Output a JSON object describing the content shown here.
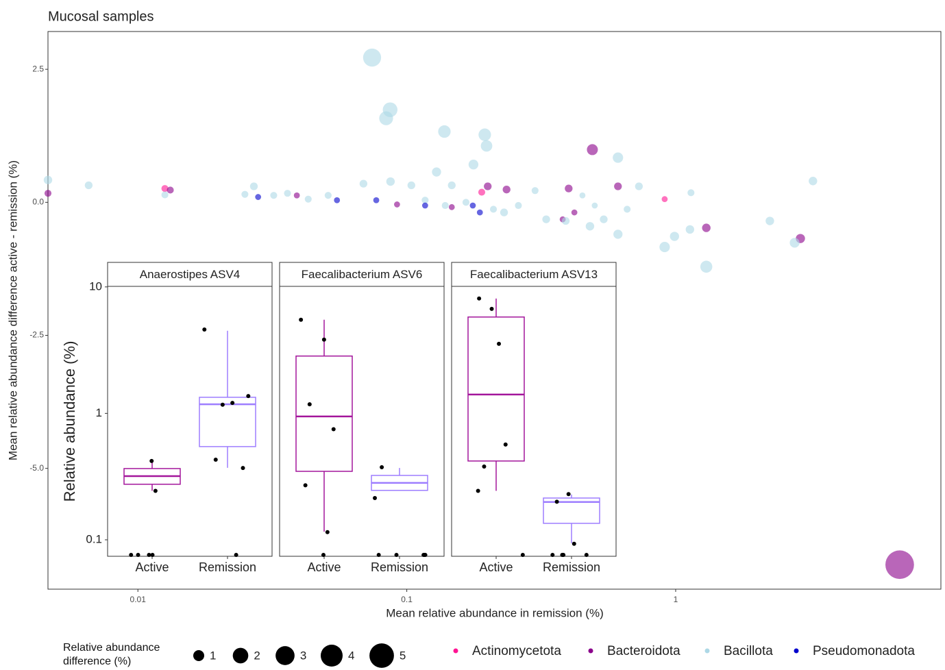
{
  "chart_data": [
    {
      "type": "scatter",
      "title": "Mucosal samples",
      "x_label": "Mean relative abundance in remission (%)",
      "y_label": "Mean relative abundance difference active - remission (%)",
      "x_log": true,
      "xlim": [
        0.00463,
        9.69
      ],
      "xticks": [
        0.01,
        0.1,
        1
      ],
      "ylim": [
        -7.27,
        3.21
      ],
      "yticks": [
        2.5,
        {
          "value": 0,
          "label": "0.0"
        },
        -2.5,
        {
          "value": -5,
          "label": "-5.0"
        }
      ],
      "size_legend": {
        "title": "Relative abundance difference (%)",
        "values": [
          1,
          2,
          3,
          4,
          5
        ]
      },
      "series": [
        {
          "name": "Actinomycetota",
          "color": "#ff1493",
          "x": [
            0.91,
            0.19,
            0.0126
          ],
          "values": [
            0.06,
            0.19,
            0.26
          ],
          "sizes": [
            0.3,
            0.4,
            0.4
          ]
        },
        {
          "name": "Bacteroidota",
          "color": "#8b008b",
          "x": [
            0.49,
            6.81,
            1.3,
            2.91,
            0.4,
            0.61,
            0.235,
            0.2,
            0.0132,
            0.039,
            0.092,
            0.147,
            0.38,
            0.00463,
            0.42
          ],
          "values": [
            0.99,
            -6.81,
            -0.48,
            -0.68,
            0.26,
            0.3,
            0.24,
            0.3,
            0.23,
            0.13,
            -0.04,
            -0.09,
            -0.32,
            0.17,
            -0.19
          ],
          "sizes": [
            1.0,
            6.8,
            0.6,
            0.7,
            0.5,
            0.5,
            0.5,
            0.5,
            0.4,
            0.3,
            0.3,
            0.3,
            0.3,
            0.4,
            0.3
          ]
        },
        {
          "name": "Bacillota",
          "color": "#add8e6",
          "x": [
            0.0743,
            0.0867,
            0.0838,
            0.138,
            0.195,
            0.198,
            0.61,
            0.177,
            0.129,
            3.24,
            0.00656,
            1.3,
            0.91,
            2.77,
            2.24,
            0.61,
            0.48,
            0.54,
            0.99,
            1.13,
            1.14,
            0.73,
            0.66,
            0.33,
            0.26,
            0.23,
            0.21,
            0.166,
            0.139,
            0.117,
            0.104,
            0.087,
            0.069,
            0.051,
            0.043,
            0.036,
            0.032,
            0.027,
            0.025,
            0.0126,
            0.00463,
            0.3,
            0.45,
            0.5,
            0.39,
            0.147
          ],
          "values": [
            2.72,
            1.74,
            1.58,
            1.33,
            1.27,
            1.06,
            0.84,
            0.71,
            0.57,
            0.4,
            0.32,
            -1.21,
            -0.84,
            -0.76,
            -0.35,
            -0.6,
            -0.45,
            -0.32,
            -0.64,
            -0.51,
            0.18,
            0.3,
            -0.13,
            -0.32,
            -0.06,
            -0.19,
            -0.13,
            0.0,
            -0.06,
            0.04,
            0.32,
            0.39,
            0.35,
            0.13,
            0.06,
            0.17,
            0.13,
            0.3,
            0.15,
            0.14,
            0.42,
            0.22,
            0.13,
            -0.06,
            -0.35,
            0.32
          ],
          "sizes": [
            2.7,
            1.8,
            1.6,
            1.3,
            1.3,
            1.1,
            0.9,
            0.8,
            0.7,
            0.6,
            0.5,
            1.2,
            0.9,
            0.8,
            0.6,
            0.7,
            0.6,
            0.5,
            0.7,
            0.6,
            0.4,
            0.5,
            0.4,
            0.5,
            0.4,
            0.5,
            0.4,
            0.4,
            0.4,
            0.4,
            0.5,
            0.6,
            0.5,
            0.4,
            0.4,
            0.4,
            0.4,
            0.5,
            0.4,
            0.4,
            0.6,
            0.4,
            0.3,
            0.3,
            0.5,
            0.5
          ]
        },
        {
          "name": "Pseudomonadota",
          "color": "#0000cd",
          "x": [
            0.028,
            0.055,
            0.117,
            0.187,
            0.176,
            0.077
          ],
          "values": [
            0.1,
            0.04,
            -0.06,
            -0.19,
            -0.06,
            0.04
          ],
          "sizes": [
            0.3,
            0.3,
            0.3,
            0.3,
            0.3,
            0.3
          ]
        }
      ]
    },
    {
      "type": "box",
      "y_label": "Relative abundance (%)",
      "y_log": true,
      "ylim": [
        0.0741,
        10.1
      ],
      "yticks": [
        10,
        1,
        0.1
      ],
      "categories": [
        "Active",
        "Remission"
      ],
      "colors": [
        "#a3159b",
        "#9d7dff"
      ],
      "facets": [
        {
          "title": "Anaerostipes ASV4",
          "boxes": [
            {
              "whisker_low": 0.244,
              "q1": 0.275,
              "median": 0.319,
              "q3": 0.366,
              "whisker_high": 0.41,
              "points": [
                0.42,
                0.244,
                0.076,
                0.076,
                0.076,
                0.076
              ]
            },
            {
              "whisker_low": 0.371,
              "q1": 0.546,
              "median": 1.18,
              "q3": 1.34,
              "whisker_high": 4.5,
              "points": [
                4.6,
                1.37,
                1.21,
                1.17,
                0.43,
                0.37,
                0.076
              ]
            }
          ]
        },
        {
          "title": "Faecalibacterium ASV6",
          "boxes": [
            {
              "whisker_low": 0.116,
              "q1": 0.348,
              "median": 0.946,
              "q3": 2.84,
              "whisker_high": 5.5,
              "points": [
                5.5,
                3.83,
                1.18,
                0.75,
                0.27,
                0.115,
                0.076
              ]
            },
            {
              "whisker_low": 0.246,
              "q1": 0.246,
              "median": 0.282,
              "q3": 0.323,
              "whisker_high": 0.37,
              "points": [
                0.375,
                0.214,
                0.076,
                0.076,
                0.076,
                0.076,
                0.076
              ]
            }
          ]
        },
        {
          "title": "Faecalibacterium ASV13",
          "boxes": [
            {
              "whisker_low": 0.244,
              "q1": 0.42,
              "median": 1.41,
              "q3": 5.78,
              "whisker_high": 8.09,
              "points": [
                8.1,
                6.7,
                3.55,
                0.567,
                0.38,
                0.244,
                0.076
              ]
            },
            {
              "whisker_low": 0.094,
              "q1": 0.135,
              "median": 0.199,
              "q3": 0.214,
              "whisker_high": 0.228,
              "points": [
                0.23,
                0.2,
                0.093,
                0.076,
                0.076,
                0.076,
                0.076
              ]
            }
          ]
        }
      ]
    }
  ]
}
